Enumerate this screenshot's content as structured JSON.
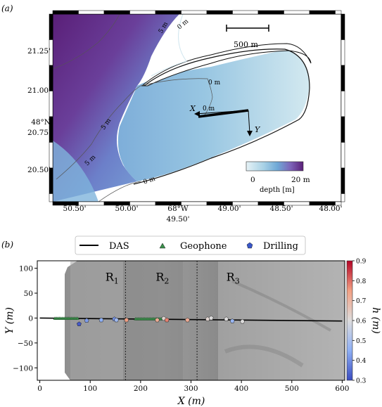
{
  "panel_a": {
    "label": "(a)",
    "lat_ticks": [
      "21.25'",
      "21.00'",
      "20.75'",
      "20.50'"
    ],
    "lat_deg": "48°N",
    "lon_ticks": [
      "50.50'",
      "50.00'",
      "49.50'",
      "49.00'",
      "48.50'",
      "48.00'"
    ],
    "lon_deg": "68°W",
    "scale_bar": "500 m",
    "axis_x_label": "X",
    "axis_y_label": "Y",
    "contours": [
      "5 m",
      "0 m",
      "0 m",
      "5 m",
      "5 m",
      "0 m",
      "0 m"
    ],
    "colorbar": {
      "min": "0",
      "max": "20 m",
      "label": "depth [m]",
      "colors": [
        "#e6f2f6",
        "#a9d2e6",
        "#6fa8d6",
        "#7d63b8",
        "#5a1f78"
      ]
    },
    "colors": {
      "land": "#ffffff",
      "shallow": "#d9ecf1",
      "mid": "#9ccbe3",
      "deep": "#6aa3d7",
      "deepest": "#5b2a80"
    }
  },
  "panel_b": {
    "label": "(b)",
    "legend": [
      "DAS",
      "Geophone",
      "Drilling"
    ],
    "region_labels": [
      "R",
      "R",
      "R"
    ],
    "region_subscripts": [
      "1",
      "2",
      "3"
    ],
    "x_ticks": [
      "0",
      "100",
      "200",
      "300",
      "400",
      "500",
      "600"
    ],
    "y_ticks": [
      "100",
      "50",
      "0",
      "−50",
      "−100"
    ],
    "xlabel": "X (m)",
    "ylabel": "Y (m)",
    "colorbar": {
      "label": "h (m)",
      "ticks": [
        "0.9",
        "0.8",
        "0.7",
        "0.6",
        "0.5",
        "0.4",
        "0.3"
      ],
      "range": [
        0.3,
        0.9
      ]
    }
  },
  "chart_data": {
    "type": "scatter",
    "xlabel": "X (m)",
    "ylabel": "Y (m)",
    "xlim": [
      -5,
      605
    ],
    "ylim": [
      -125,
      115
    ],
    "region_boundaries_x": [
      170,
      312
    ],
    "series": [
      {
        "name": "DAS",
        "kind": "line",
        "x": [
          0,
          600
        ],
        "y": [
          0,
          -6
        ]
      },
      {
        "name": "Geophone",
        "kind": "scatter",
        "x": [
          30,
          33,
          36,
          39,
          42,
          45,
          48,
          51,
          54,
          57,
          60,
          63,
          66,
          69,
          72,
          75,
          190,
          193,
          196,
          199,
          202,
          205,
          208,
          211,
          214,
          217,
          220,
          223,
          226,
          229,
          232,
          235,
          238,
          241,
          244
        ],
        "y": [
          -1,
          -1,
          -1,
          -1,
          -1,
          -1,
          -1,
          -1,
          -1,
          -1,
          -1,
          -1,
          -1,
          -1,
          -1,
          -1,
          -2,
          -2,
          -2,
          -2,
          -2,
          -2,
          -2,
          -2,
          -2,
          -2,
          -2,
          -2,
          -2,
          -2,
          -2,
          -2,
          -2,
          -2,
          -2
        ]
      },
      {
        "name": "Drilling",
        "kind": "scatter",
        "x": [
          78,
          93,
          122,
          148,
          152,
          172,
          233,
          246,
          252,
          293,
          333,
          340,
          370,
          382,
          402
        ],
        "y": [
          -12,
          -5,
          -4,
          -2,
          -4,
          -4,
          -4,
          -1,
          -4,
          -4,
          -2,
          0,
          -2,
          -6,
          -7
        ],
        "h": [
          0.32,
          0.42,
          0.45,
          0.4,
          0.48,
          0.75,
          0.72,
          0.62,
          0.78,
          0.72,
          0.62,
          0.6,
          0.6,
          0.47,
          0.6
        ]
      }
    ]
  }
}
